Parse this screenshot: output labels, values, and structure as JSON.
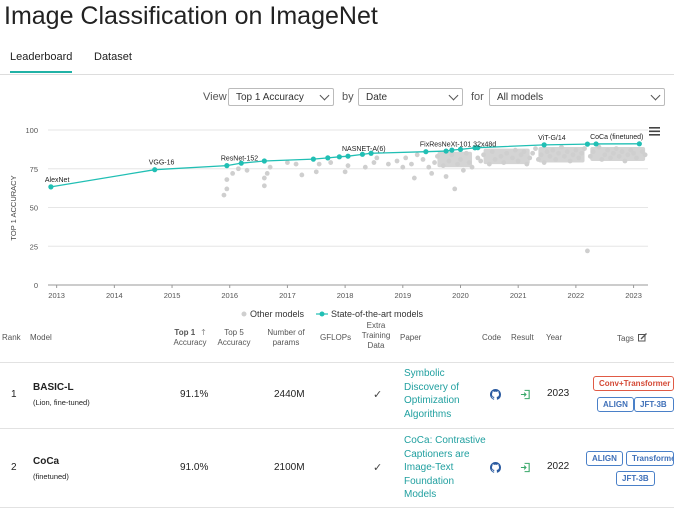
{
  "page": {
    "title": "Image Classification on ImageNet"
  },
  "tabs": [
    {
      "label": "Leaderboard",
      "active": true
    },
    {
      "label": "Dataset",
      "active": false
    }
  ],
  "filters": {
    "view_label": "View",
    "view_value": "Top 1 Accuracy",
    "by_label": "by",
    "by_value": "Date",
    "for_label": "for",
    "for_value": "All models"
  },
  "chart_data": {
    "type": "scatter",
    "ylabel": "TOP 1 ACCURACY",
    "ylim": [
      0,
      100
    ],
    "yticks": [
      0,
      25,
      50,
      75,
      100
    ],
    "xlim": [
      2012.85,
      2023.25
    ],
    "xticks": [
      "2013",
      "2014",
      "2015",
      "2016",
      "2017",
      "2018",
      "2019",
      "2020",
      "2021",
      "2022",
      "2023"
    ],
    "legend": {
      "placement": "bottom",
      "items": [
        "Other models",
        "State-of-the-art models"
      ]
    },
    "colors": {
      "sota": "#21bfb4",
      "other": "#cfcfcf"
    },
    "sota_series": [
      {
        "x": 2012.9,
        "y": 63.3
      },
      {
        "x": 2014.7,
        "y": 74.4
      },
      {
        "x": 2015.95,
        "y": 77.0
      },
      {
        "x": 2016.2,
        "y": 78.6
      },
      {
        "x": 2016.6,
        "y": 80.0
      },
      {
        "x": 2017.45,
        "y": 81.2
      },
      {
        "x": 2017.7,
        "y": 82.0
      },
      {
        "x": 2017.9,
        "y": 82.7
      },
      {
        "x": 2018.05,
        "y": 83.1
      },
      {
        "x": 2018.3,
        "y": 84.3
      },
      {
        "x": 2018.45,
        "y": 85.0
      },
      {
        "x": 2019.4,
        "y": 86.0
      },
      {
        "x": 2019.75,
        "y": 86.4
      },
      {
        "x": 2019.85,
        "y": 87.0
      },
      {
        "x": 2020.0,
        "y": 87.5
      },
      {
        "x": 2020.25,
        "y": 88.5
      },
      {
        "x": 2020.3,
        "y": 88.6
      },
      {
        "x": 2021.45,
        "y": 90.4
      },
      {
        "x": 2022.2,
        "y": 90.9
      },
      {
        "x": 2022.35,
        "y": 91.0
      },
      {
        "x": 2023.1,
        "y": 91.1
      }
    ],
    "sota_labels": [
      {
        "text": "AlexNet",
        "x": 2012.9,
        "y": 63.3
      },
      {
        "text": "VGG-16",
        "x": 2014.7,
        "y": 74.4
      },
      {
        "text": "ResNet-152",
        "x": 2015.95,
        "y": 77.0
      },
      {
        "text": "NASNET-A(6)",
        "x": 2018.05,
        "y": 83.1
      },
      {
        "text": "FixResNeXt-101 32x48d",
        "x": 2019.4,
        "y": 86.0
      },
      {
        "text": "ViT-G/14",
        "x": 2021.45,
        "y": 90.4
      },
      {
        "text": "CoCa (finetuned)",
        "x": 2022.35,
        "y": 91.0
      }
    ],
    "other_points": [
      {
        "x": 2015.9,
        "y": 58
      },
      {
        "x": 2015.95,
        "y": 62
      },
      {
        "x": 2015.95,
        "y": 68
      },
      {
        "x": 2016.05,
        "y": 72
      },
      {
        "x": 2016.15,
        "y": 75
      },
      {
        "x": 2016.3,
        "y": 74
      },
      {
        "x": 2016.6,
        "y": 64
      },
      {
        "x": 2016.6,
        "y": 69
      },
      {
        "x": 2016.65,
        "y": 72
      },
      {
        "x": 2016.7,
        "y": 76
      },
      {
        "x": 2017.0,
        "y": 79
      },
      {
        "x": 2017.15,
        "y": 78
      },
      {
        "x": 2017.25,
        "y": 71
      },
      {
        "x": 2017.5,
        "y": 73
      },
      {
        "x": 2017.55,
        "y": 78
      },
      {
        "x": 2017.75,
        "y": 79
      },
      {
        "x": 2018.0,
        "y": 73
      },
      {
        "x": 2018.05,
        "y": 77
      },
      {
        "x": 2018.35,
        "y": 76
      },
      {
        "x": 2018.5,
        "y": 79
      },
      {
        "x": 2018.55,
        "y": 82
      },
      {
        "x": 2018.75,
        "y": 78
      },
      {
        "x": 2018.9,
        "y": 80
      },
      {
        "x": 2019.0,
        "y": 76
      },
      {
        "x": 2019.05,
        "y": 82
      },
      {
        "x": 2019.15,
        "y": 78
      },
      {
        "x": 2019.2,
        "y": 69
      },
      {
        "x": 2019.25,
        "y": 84
      },
      {
        "x": 2019.35,
        "y": 81
      },
      {
        "x": 2019.45,
        "y": 76
      },
      {
        "x": 2019.5,
        "y": 72
      },
      {
        "x": 2019.55,
        "y": 79
      },
      {
        "x": 2019.6,
        "y": 83
      },
      {
        "x": 2019.7,
        "y": 77
      },
      {
        "x": 2019.75,
        "y": 70
      },
      {
        "x": 2019.8,
        "y": 80
      },
      {
        "x": 2019.85,
        "y": 84
      },
      {
        "x": 2019.9,
        "y": 62
      },
      {
        "x": 2019.95,
        "y": 78
      },
      {
        "x": 2020.0,
        "y": 81
      },
      {
        "x": 2020.05,
        "y": 74
      },
      {
        "x": 2020.1,
        "y": 85
      },
      {
        "x": 2020.15,
        "y": 79
      },
      {
        "x": 2020.2,
        "y": 76
      },
      {
        "x": 2020.3,
        "y": 82
      },
      {
        "x": 2020.35,
        "y": 80
      },
      {
        "x": 2020.4,
        "y": 84
      },
      {
        "x": 2020.5,
        "y": 78
      },
      {
        "x": 2020.55,
        "y": 86
      },
      {
        "x": 2020.6,
        "y": 81
      },
      {
        "x": 2020.7,
        "y": 83
      },
      {
        "x": 2020.75,
        "y": 79
      },
      {
        "x": 2020.8,
        "y": 85
      },
      {
        "x": 2020.9,
        "y": 82
      },
      {
        "x": 2020.95,
        "y": 87
      },
      {
        "x": 2021.0,
        "y": 80
      },
      {
        "x": 2021.05,
        "y": 84
      },
      {
        "x": 2021.1,
        "y": 86
      },
      {
        "x": 2021.15,
        "y": 78
      },
      {
        "x": 2021.2,
        "y": 82
      },
      {
        "x": 2021.25,
        "y": 85
      },
      {
        "x": 2021.3,
        "y": 88
      },
      {
        "x": 2021.35,
        "y": 81
      },
      {
        "x": 2021.4,
        "y": 84
      },
      {
        "x": 2021.45,
        "y": 79
      },
      {
        "x": 2021.5,
        "y": 86
      },
      {
        "x": 2021.55,
        "y": 83
      },
      {
        "x": 2021.6,
        "y": 87
      },
      {
        "x": 2021.65,
        "y": 81
      },
      {
        "x": 2021.7,
        "y": 85
      },
      {
        "x": 2021.75,
        "y": 89
      },
      {
        "x": 2021.8,
        "y": 83
      },
      {
        "x": 2021.85,
        "y": 86
      },
      {
        "x": 2021.9,
        "y": 80
      },
      {
        "x": 2021.95,
        "y": 84
      },
      {
        "x": 2022.0,
        "y": 87
      },
      {
        "x": 2022.05,
        "y": 82
      },
      {
        "x": 2022.1,
        "y": 85
      },
      {
        "x": 2022.15,
        "y": 88
      },
      {
        "x": 2022.2,
        "y": 22
      },
      {
        "x": 2022.25,
        "y": 83
      },
      {
        "x": 2022.3,
        "y": 86
      },
      {
        "x": 2022.4,
        "y": 89
      },
      {
        "x": 2022.45,
        "y": 81
      },
      {
        "x": 2022.5,
        "y": 84
      },
      {
        "x": 2022.55,
        "y": 87
      },
      {
        "x": 2022.6,
        "y": 82
      },
      {
        "x": 2022.65,
        "y": 85
      },
      {
        "x": 2022.7,
        "y": 88
      },
      {
        "x": 2022.75,
        "y": 83
      },
      {
        "x": 2022.8,
        "y": 86
      },
      {
        "x": 2022.85,
        "y": 80
      },
      {
        "x": 2022.9,
        "y": 84
      },
      {
        "x": 2022.95,
        "y": 87
      },
      {
        "x": 2023.0,
        "y": 85
      },
      {
        "x": 2023.05,
        "y": 82
      },
      {
        "x": 2023.15,
        "y": 86
      },
      {
        "x": 2023.2,
        "y": 84
      }
    ],
    "other_bands": [
      {
        "x0": 2019.6,
        "x1": 2020.2,
        "y0": 76,
        "y1": 86
      },
      {
        "x0": 2020.4,
        "x1": 2021.2,
        "y0": 78,
        "y1": 88
      },
      {
        "x0": 2021.35,
        "x1": 2022.15,
        "y0": 79,
        "y1": 89
      },
      {
        "x0": 2022.25,
        "x1": 2023.2,
        "y0": 80,
        "y1": 89
      }
    ]
  },
  "table": {
    "headers": {
      "rank": "Rank",
      "model": "Model",
      "top1_line1": "Top 1",
      "top1_line2": "Accuracy",
      "top5_line1": "Top 5",
      "top5_line2": "Accuracy",
      "params_line1": "Number of",
      "params_line2": "params",
      "gflops": "GFLOPs",
      "extra_line1": "Extra",
      "extra_line2": "Training",
      "extra_line3": "Data",
      "paper": "Paper",
      "code": "Code",
      "result": "Result",
      "year": "Year",
      "tags": "Tags"
    },
    "rows": [
      {
        "rank": "1",
        "model": "BASIC-L",
        "model_sub": "(Lion, fine-tuned)",
        "top1": "91.1%",
        "top5": "",
        "params": "2440M",
        "gflops": "",
        "extra": "✓",
        "paper_lines": [
          "Symbolic",
          "Discovery of",
          "Optimization",
          "Algorithms"
        ],
        "year": "2023",
        "tags": [
          "Conv+Transformer",
          "ALIGN",
          "JFT-3B"
        ]
      },
      {
        "rank": "2",
        "model": "CoCa",
        "model_sub": "(finetuned)",
        "top1": "91.0%",
        "top5": "",
        "params": "2100M",
        "gflops": "",
        "extra": "✓",
        "paper_lines": [
          "CoCa: Contrastive",
          "Captioners are",
          "Image-Text",
          "Foundation",
          "Models"
        ],
        "year": "2022",
        "tags": [
          "ALIGN",
          "Transformer",
          "JFT-3B"
        ]
      }
    ]
  }
}
